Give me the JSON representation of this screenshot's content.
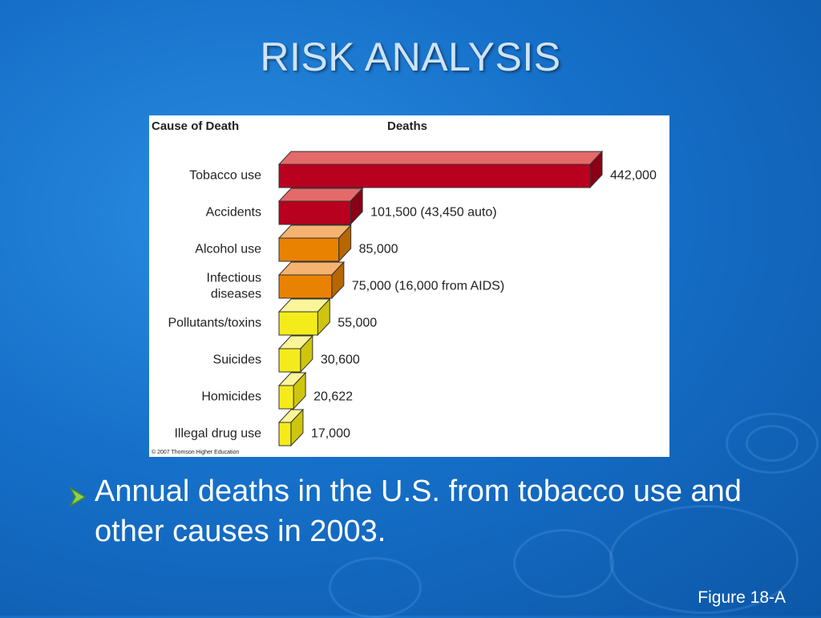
{
  "slide": {
    "title": "RISK ANALYSIS",
    "bullet": "Annual deaths in the U.S. from tobacco use and other causes in 2003.",
    "footer": "Figure 18-A"
  },
  "chart_data": {
    "type": "bar",
    "orientation": "horizontal",
    "column_headers": [
      "Cause of Death",
      "Deaths"
    ],
    "categories": [
      "Tobacco use",
      "Accidents",
      "Alcohol use",
      "Infectious diseases",
      "Pollutants/toxins",
      "Suicides",
      "Homicides",
      "Illegal drug use"
    ],
    "category_lines": [
      [
        "Tobacco use"
      ],
      [
        "Accidents"
      ],
      [
        "Alcohol use"
      ],
      [
        "Infectious",
        "diseases"
      ],
      [
        "Pollutants/toxins"
      ],
      [
        "Suicides"
      ],
      [
        "Homicides"
      ],
      [
        "Illegal drug use"
      ]
    ],
    "values": [
      442000,
      101500,
      85000,
      75000,
      55000,
      30600,
      20622,
      17000
    ],
    "value_labels": [
      "442,000",
      "101,500 (43,450 auto)",
      "85,000",
      "75,000 (16,000 from AIDS)",
      "55,000",
      "30,600",
      "20,622",
      "17,000"
    ],
    "bar_colors": [
      "#b8001f",
      "#b8001f",
      "#e98200",
      "#e98200",
      "#f4ec1a",
      "#f4ec1a",
      "#f4ec1a",
      "#f4ec1a"
    ],
    "bar_top_colors": [
      "#e46a6a",
      "#e46a6a",
      "#f6b270",
      "#f6b270",
      "#fbf59a",
      "#fbf59a",
      "#fbf59a",
      "#fbf59a"
    ],
    "bar_side_colors": [
      "#8a0016",
      "#8a0016",
      "#b86600",
      "#b86600",
      "#cfc50e",
      "#cfc50e",
      "#cfc50e",
      "#cfc50e"
    ],
    "copyright": "© 2007 Thomson Higher Education",
    "style": "3d"
  }
}
